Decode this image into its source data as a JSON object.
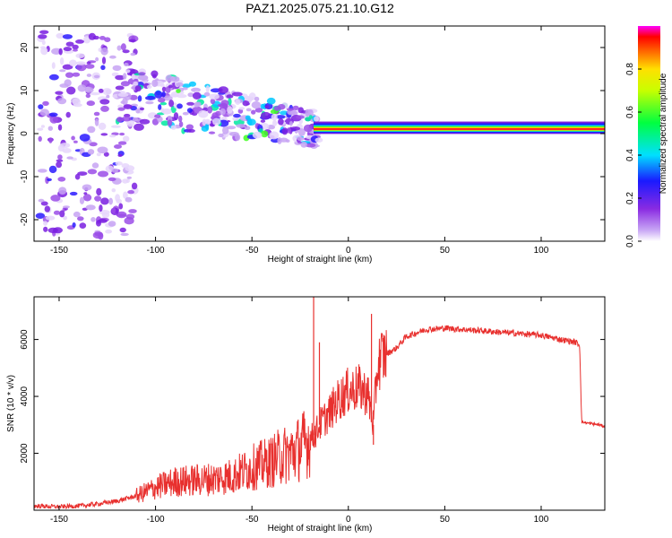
{
  "title": "PAZ1.2025.075.21.10.G12",
  "chart_data": [
    {
      "type": "heatmap",
      "xlabel": "Height of straight line (km)",
      "ylabel": "Frequency (Hz)",
      "xlim": [
        -163,
        133
      ],
      "ylim": [
        -25,
        25
      ],
      "x_ticks": [
        -150,
        -100,
        -50,
        0,
        50,
        100
      ],
      "y_ticks": [
        -20,
        -10,
        0,
        10,
        20
      ],
      "colorbar": {
        "label": "Normalized spectral amplitude",
        "range": [
          0,
          1
        ],
        "ticks": [
          0.0,
          0.2,
          0.4,
          0.6,
          0.8
        ],
        "tick_labels": [
          "0.0",
          "0.2",
          "0.4",
          "0.6",
          "0.8"
        ]
      },
      "features": [
        {
          "description_x_km": [
            -160,
            -110
          ],
          "freq_range_hz": [
            -24,
            24
          ],
          "amplitude": 0.1
        },
        {
          "description_x_km": [
            -120,
            -15
          ],
          "freq_range_hz": [
            -10,
            12
          ],
          "amplitude": 0.15
        },
        {
          "description_x_km": [
            -18,
            133
          ],
          "freq_range_hz": [
            0.5,
            1.5
          ],
          "amplitude": 0.95
        }
      ]
    },
    {
      "type": "line",
      "xlabel": "Height of straight line (km)",
      "ylabel": "SNR (10 * v/v)",
      "xlim": [
        -163,
        133
      ],
      "ylim": [
        0,
        7500
      ],
      "x_ticks": [
        -150,
        -100,
        -50,
        0,
        50,
        100
      ],
      "y_ticks": [
        2000,
        4000,
        6000
      ],
      "color": "#e8302e",
      "series": [
        {
          "x": [
            -163,
            -150,
            -140,
            -130,
            -120,
            -110,
            -100,
            -90,
            -80,
            -70,
            -60,
            -50,
            -40,
            -35,
            -30,
            -25,
            -20,
            -17,
            -15,
            -10,
            -5,
            0,
            5,
            10,
            13,
            15,
            17,
            20,
            25,
            30,
            40,
            50,
            60,
            70,
            80,
            90,
            100,
            110,
            118,
            120,
            121,
            125,
            130,
            133
          ],
          "y": [
            150,
            120,
            150,
            220,
            320,
            500,
            800,
            1000,
            1050,
            1100,
            1200,
            1500,
            1700,
            1900,
            2000,
            2200,
            2500,
            2700,
            3000,
            3400,
            3900,
            4200,
            4300,
            4100,
            3000,
            5000,
            5400,
            5500,
            5700,
            6100,
            6350,
            6400,
            6350,
            6300,
            6250,
            6200,
            6150,
            6000,
            5900,
            5800,
            3100,
            3050,
            3000,
            2950
          ]
        }
      ],
      "spikes": [
        {
          "x": -18,
          "y": 7500
        },
        {
          "x": -15,
          "y": 5900
        },
        {
          "x": 12,
          "y": 6900
        },
        {
          "x": 13,
          "y": 2300
        }
      ]
    }
  ]
}
